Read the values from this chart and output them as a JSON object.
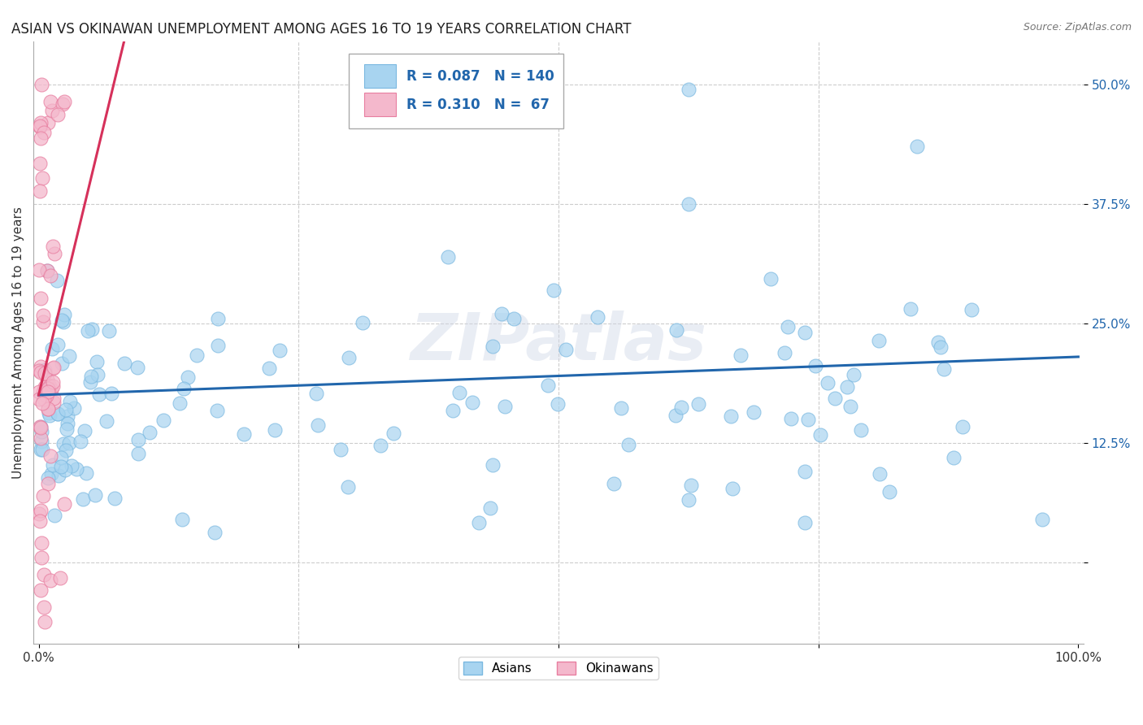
{
  "title": "ASIAN VS OKINAWAN UNEMPLOYMENT AMONG AGES 16 TO 19 YEARS CORRELATION CHART",
  "source": "Source: ZipAtlas.com",
  "ylabel": "Unemployment Among Ages 16 to 19 years",
  "ytick_labels": [
    "",
    "12.5%",
    "25.0%",
    "37.5%",
    "50.0%"
  ],
  "ytick_values": [
    0.0,
    0.125,
    0.25,
    0.375,
    0.5
  ],
  "xlim": [
    -0.005,
    1.005
  ],
  "ylim": [
    -0.085,
    0.545
  ],
  "asian_R": 0.087,
  "asian_N": 140,
  "okinawan_R": 0.31,
  "okinawan_N": 67,
  "asian_color": "#a8d4f0",
  "asian_edge_color": "#7ab8e0",
  "okinawan_color": "#f4b8cc",
  "okinawan_edge_color": "#e87ea0",
  "asian_line_color": "#2166ac",
  "okinawan_line_color": "#d6315b",
  "legend_label_asian": "Asians",
  "legend_label_okinawan": "Okinawans",
  "watermark": "ZIPatlas",
  "background_color": "#ffffff",
  "grid_color": "#cccccc",
  "title_fontsize": 12,
  "axis_label_fontsize": 11,
  "tick_fontsize": 11,
  "tick_color": "#2166ac",
  "asian_line_intercept": 0.175,
  "asian_line_slope": 0.04,
  "okinawan_line_intercept": 0.175,
  "okinawan_line_slope": 4.5
}
